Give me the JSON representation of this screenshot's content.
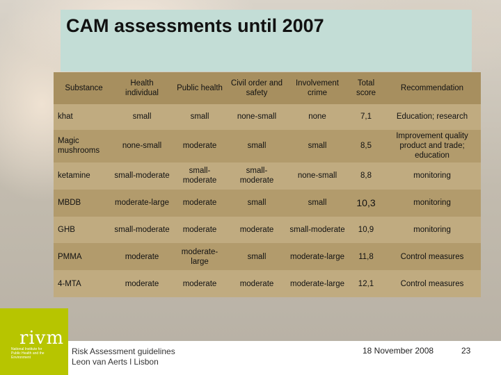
{
  "slide": {
    "title": "CAM assessments until 2007"
  },
  "table": {
    "headers": [
      "Substance",
      "Health individual",
      "Public health",
      "Civil order and safety",
      "Involvement crime",
      "Total score",
      "Recommendation"
    ],
    "rows": [
      [
        "khat",
        "small",
        "small",
        "none-small",
        "none",
        "7,1",
        "Education; research"
      ],
      [
        "Magic mushrooms",
        "none-small",
        "moderate",
        "small",
        "small",
        "8,5",
        "Improvement quality product and trade; education"
      ],
      [
        "ketamine",
        "small-moderate",
        "small-moderate",
        "small-moderate",
        "none-small",
        "8,8",
        "monitoring"
      ],
      [
        "MBDB",
        "moderate-large",
        "moderate",
        "small",
        "small",
        "10,3",
        "monitoring"
      ],
      [
        "GHB",
        "small-moderate",
        "moderate",
        "moderate",
        "small-moderate",
        "10,9",
        "monitoring"
      ],
      [
        "PMMA",
        "moderate",
        "moderate-large",
        "small",
        "moderate-large",
        "11,8",
        "Control measures"
      ],
      [
        "4-MTA",
        "moderate",
        "moderate",
        "moderate",
        "moderate-large",
        "12,1",
        "Control measures"
      ]
    ]
  },
  "footer": {
    "logo_text": "rivm",
    "logo_sub": "National Institute for Public Health and the Environment",
    "left_line1": "Risk Assessment guidelines",
    "left_line2": "Leon van Aerts l Lisbon",
    "date": "18 November 2008",
    "page": "23"
  },
  "colors": {
    "title_box": "#c3ddd6",
    "table_header": "#a78f5f",
    "table_row_light": "#c0ab80",
    "table_row_dark": "#b29b6c",
    "logo_green": "#b7c500"
  }
}
